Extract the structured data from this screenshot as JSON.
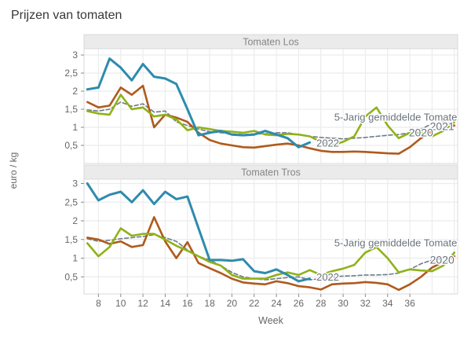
{
  "title": "Prijzen van tomaten",
  "axes": {
    "x_label": "Week",
    "y_label": "euro / kg",
    "x_tick_labels": [
      "8",
      "10",
      "12",
      "14",
      "16",
      "18",
      "20",
      "22",
      "24",
      "26",
      "28",
      "30",
      "32",
      "34",
      "36"
    ],
    "y_tick_labels": [
      "3",
      "2,5",
      "2",
      "1,5",
      "1",
      "0,5"
    ]
  },
  "colors": {
    "series_2022": "#2e8bad",
    "series_2021": "#8fb218",
    "series_2020": "#b05a1c",
    "series_5yr_avg": "#6f7b87",
    "annotation_text": "#6a737b",
    "panel_header_bg": "#ebebeb",
    "panel_header_text": "#858585",
    "grid": "#ececec",
    "border": "#d8d8d8",
    "axis_text": "#666666",
    "tick_mark": "#8a8a8a"
  },
  "chart_data": [
    {
      "type": "line",
      "panel_title": "Tomaten Los",
      "xlabel": "Week",
      "ylabel": "euro / kg",
      "ylim": [
        0,
        3.17
      ],
      "x_weeks": [
        7,
        8,
        9,
        10,
        11,
        12,
        13,
        14,
        15,
        16,
        17,
        18,
        19,
        20,
        21,
        22,
        23,
        24,
        25,
        26,
        27,
        28,
        29,
        30,
        31,
        32,
        33,
        34,
        35,
        36,
        37,
        38,
        39,
        40
      ],
      "series": [
        {
          "name": "5-Jarig gemiddelde",
          "color_key": "series_5yr_avg",
          "dash": true,
          "values": [
            1.48,
            1.45,
            1.5,
            1.7,
            1.58,
            1.65,
            1.42,
            1.45,
            1.15,
            1.05,
            0.95,
            0.88,
            0.85,
            0.82,
            0.8,
            0.82,
            0.82,
            0.85,
            0.85,
            0.8,
            0.75,
            0.72,
            0.7,
            0.68,
            0.7,
            0.72,
            0.75,
            0.78,
            0.8,
            0.85,
            0.95,
            1.1,
            1.15,
            1.1
          ]
        },
        {
          "name": "2020",
          "color_key": "series_2020",
          "dash": false,
          "values": [
            1.7,
            1.55,
            1.6,
            2.1,
            1.9,
            2.15,
            1.0,
            1.35,
            1.27,
            1.15,
            0.85,
            0.65,
            0.55,
            0.5,
            0.45,
            0.44,
            0.48,
            0.52,
            0.55,
            0.5,
            0.42,
            0.35,
            0.32,
            0.32,
            0.33,
            0.32,
            0.3,
            0.28,
            0.27,
            0.45,
            0.7,
            0.9,
            1.0,
            1.05
          ]
        },
        {
          "name": "2021",
          "color_key": "series_2021",
          "dash": false,
          "values": [
            1.45,
            1.38,
            1.35,
            1.9,
            1.5,
            1.55,
            1.3,
            1.35,
            1.22,
            0.92,
            1.0,
            0.95,
            0.9,
            0.88,
            0.85,
            0.9,
            0.8,
            0.78,
            0.82,
            0.8,
            0.75,
            0.6,
            0.5,
            0.6,
            0.75,
            1.3,
            1.55,
            1.05,
            0.7,
            0.85,
            0.85,
            0.75,
            0.9,
            1.15
          ]
        },
        {
          "name": "2022",
          "color_key": "series_2022",
          "dash": false,
          "values": [
            2.05,
            2.1,
            2.9,
            2.65,
            2.3,
            2.75,
            2.4,
            2.35,
            2.2,
            1.5,
            0.78,
            0.85,
            0.9,
            0.8,
            0.78,
            0.8,
            0.9,
            0.8,
            0.7,
            0.45,
            0.58,
            null,
            null,
            null,
            null,
            null,
            null,
            null,
            null,
            null,
            null,
            null,
            null,
            null
          ]
        }
      ],
      "annotations": [
        {
          "text": "5-Jarig gemiddelde Tomate",
          "week": 29.2,
          "value": 1.28,
          "size": 13
        },
        {
          "text": "2021",
          "week": 37.8,
          "value": 1.02,
          "size": 14
        },
        {
          "text": "2020",
          "week": 35.9,
          "value": 0.85,
          "size": 14
        },
        {
          "text": "2022",
          "week": 27.6,
          "value": 0.57,
          "size": 13
        }
      ]
    },
    {
      "type": "line",
      "panel_title": "Tomaten Tros",
      "xlabel": "Week",
      "ylabel": "euro / kg",
      "ylim": [
        0,
        3.12
      ],
      "x_weeks": [
        7,
        8,
        9,
        10,
        11,
        12,
        13,
        14,
        15,
        16,
        17,
        18,
        19,
        20,
        21,
        22,
        23,
        24,
        25,
        26,
        27,
        28,
        29,
        30,
        31,
        32,
        33,
        34,
        35,
        36,
        37,
        38,
        39,
        40
      ],
      "series": [
        {
          "name": "5-Jarig gemiddelde",
          "color_key": "series_5yr_avg",
          "dash": true,
          "values": [
            1.52,
            1.45,
            1.48,
            1.52,
            1.55,
            1.58,
            1.63,
            1.55,
            1.45,
            1.22,
            1.05,
            0.95,
            0.8,
            0.62,
            0.5,
            0.45,
            0.42,
            0.45,
            0.48,
            0.5,
            0.42,
            0.45,
            0.5,
            0.52,
            0.53,
            0.55,
            0.55,
            0.56,
            0.6,
            0.7,
            0.85,
            0.95,
            1.0,
            1.05
          ]
        },
        {
          "name": "2020",
          "color_key": "series_2020",
          "dash": false,
          "values": [
            1.55,
            1.5,
            1.38,
            1.45,
            1.3,
            1.35,
            2.1,
            1.45,
            1.0,
            1.43,
            0.87,
            0.73,
            0.6,
            0.45,
            0.35,
            0.32,
            0.3,
            0.38,
            0.33,
            0.25,
            0.22,
            0.16,
            0.3,
            0.32,
            0.33,
            0.36,
            0.34,
            0.3,
            0.15,
            0.3,
            0.5,
            0.75,
            0.9,
            1.05
          ]
        },
        {
          "name": "2021",
          "color_key": "series_2021",
          "dash": false,
          "values": [
            1.4,
            1.05,
            1.3,
            1.8,
            1.6,
            1.65,
            1.65,
            1.5,
            1.33,
            1.2,
            1.05,
            0.9,
            0.8,
            0.55,
            0.45,
            0.45,
            0.45,
            0.55,
            0.62,
            0.55,
            0.68,
            0.55,
            0.65,
            0.72,
            0.82,
            1.15,
            1.3,
            1.0,
            0.62,
            0.7,
            0.67,
            0.65,
            0.8,
            1.15
          ]
        },
        {
          "name": "2022",
          "color_key": "series_2022",
          "dash": false,
          "values": [
            3.0,
            2.55,
            2.7,
            2.78,
            2.5,
            2.82,
            2.45,
            2.78,
            2.58,
            2.65,
            1.8,
            0.95,
            0.95,
            0.93,
            0.97,
            0.65,
            0.6,
            0.7,
            0.55,
            0.38,
            0.45,
            null,
            null,
            null,
            null,
            null,
            null,
            null,
            null,
            null,
            null,
            null,
            null,
            null
          ]
        }
      ],
      "annotations": [
        {
          "text": "5-Jarig gemiddelde Tomate",
          "week": 29.2,
          "value": 1.41,
          "size": 13
        },
        {
          "text": "2020",
          "week": 37.8,
          "value": 0.95,
          "size": 14
        },
        {
          "text": "2022",
          "week": 27.6,
          "value": 0.5,
          "size": 13
        }
      ]
    }
  ]
}
